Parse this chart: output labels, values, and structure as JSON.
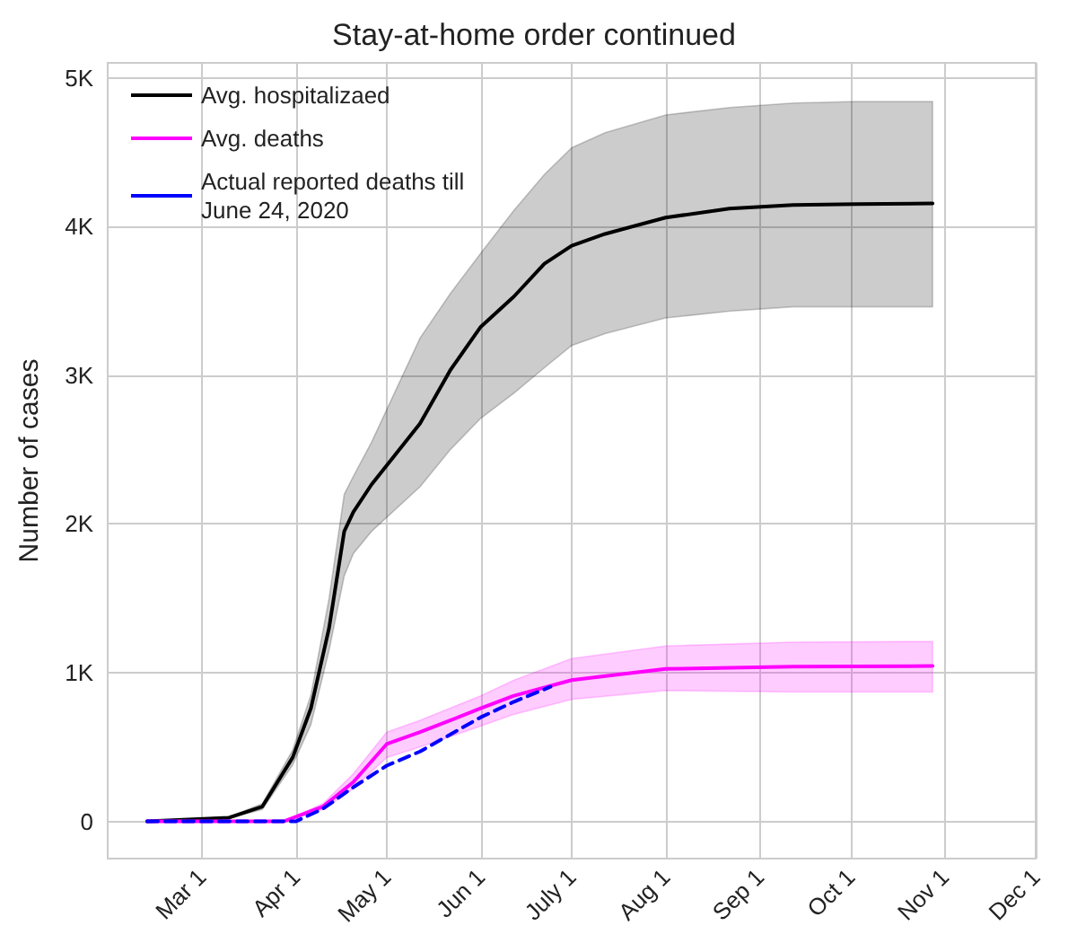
{
  "chart_data": {
    "type": "line",
    "title": "Stay-at-home order continued",
    "ylabel": "Number of cases",
    "xlim": [
      "2020-01-30",
      "2020-12-01"
    ],
    "xticks": [
      {
        "value": "2020-03-01",
        "label": "Mar 1"
      },
      {
        "value": "2020-04-01",
        "label": "Apr 1"
      },
      {
        "value": "2020-05-01",
        "label": "May 1"
      },
      {
        "value": "2020-06-01",
        "label": "Jun 1"
      },
      {
        "value": "2020-07-01",
        "label": "July 1"
      },
      {
        "value": "2020-08-01",
        "label": "Aug 1"
      },
      {
        "value": "2020-09-01",
        "label": "Sep 1"
      },
      {
        "value": "2020-10-01",
        "label": "Oct 1"
      },
      {
        "value": "2020-11-01",
        "label": "Nov 1"
      },
      {
        "value": "2020-12-01",
        "label": "Dec 1"
      }
    ],
    "ylim": [
      -250,
      5100
    ],
    "yticks": [
      0,
      {
        "value": 1000,
        "label": "1K"
      },
      {
        "value": 2000,
        "label": "2K"
      },
      {
        "value": 3000,
        "label": "3K"
      },
      {
        "value": 4000,
        "label": "4K"
      },
      {
        "value": 5000,
        "label": "5K"
      }
    ],
    "grid": true,
    "legend": "top left",
    "marker": "none",
    "series": [
      {
        "name": "Avg. hospitalizaed",
        "color": "#000000",
        "line_style": "solid",
        "x": [
          "2020-02-12",
          "2020-03-10",
          "2020-03-21",
          "2020-03-31",
          "2020-04-06",
          "2020-04-12",
          "2020-04-17",
          "2020-04-20",
          "2020-04-26",
          "2020-05-12",
          "2020-05-22",
          "2020-06-01",
          "2020-06-12",
          "2020-06-22",
          "2020-07-01",
          "2020-07-12",
          "2020-08-01",
          "2020-08-22",
          "2020-09-12",
          "2020-10-03",
          "2020-10-28"
        ],
        "values": [
          0,
          25,
          100,
          430,
          760,
          1300,
          1950,
          2080,
          2265,
          2675,
          3035,
          3325,
          3530,
          3750,
          3870,
          3950,
          4060,
          4120,
          4145,
          4150,
          4155
        ],
        "lower": [
          0,
          20,
          80,
          380,
          650,
          1150,
          1650,
          1800,
          1950,
          2250,
          2500,
          2710,
          2880,
          3050,
          3200,
          3280,
          3385,
          3430,
          3460,
          3460,
          3460
        ],
        "upper": [
          0,
          30,
          120,
          480,
          850,
          1500,
          2200,
          2320,
          2550,
          3250,
          3550,
          3820,
          4110,
          4350,
          4530,
          4630,
          4750,
          4800,
          4830,
          4840,
          4840
        ]
      },
      {
        "name": "Avg. deaths",
        "color": "#ff00ff",
        "line_style": "solid",
        "x": [
          "2020-02-12",
          "2020-03-28",
          "2020-04-10",
          "2020-04-20",
          "2020-05-01",
          "2020-05-12",
          "2020-06-01",
          "2020-06-12",
          "2020-07-01",
          "2020-08-01",
          "2020-09-12",
          "2020-10-28"
        ],
        "values": [
          0,
          0,
          100,
          265,
          520,
          600,
          760,
          845,
          950,
          1025,
          1040,
          1045
        ],
        "lower": [
          0,
          0,
          80,
          220,
          430,
          500,
          640,
          720,
          820,
          880,
          870,
          870
        ],
        "upper": [
          0,
          0,
          120,
          320,
          600,
          680,
          845,
          950,
          1095,
          1180,
          1205,
          1210
        ]
      },
      {
        "name": "Actual reported deaths till June 24, 2020",
        "color": "#0000ff",
        "line_style": "dashed",
        "x": [
          "2020-02-12",
          "2020-04-01",
          "2020-04-10",
          "2020-04-20",
          "2020-05-01",
          "2020-05-12",
          "2020-06-01",
          "2020-06-12",
          "2020-06-24"
        ],
        "values": [
          0,
          0,
          85,
          230,
          375,
          470,
          700,
          805,
          905
        ]
      }
    ]
  }
}
